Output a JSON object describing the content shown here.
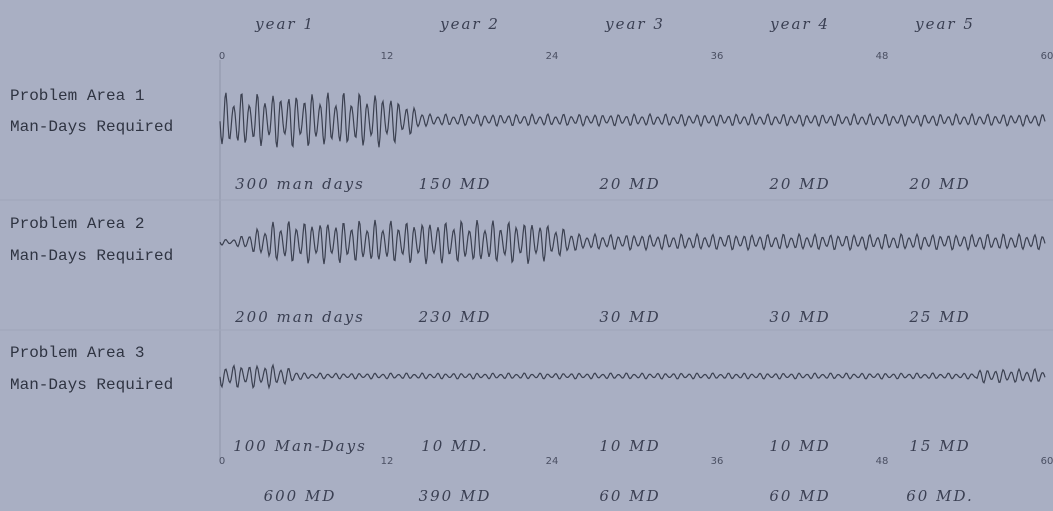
{
  "header": {
    "years": [
      "year 1",
      "year 2",
      "year 3",
      "year 4",
      "year 5"
    ],
    "ticks": [
      "0",
      "12",
      "24",
      "36",
      "48",
      "60"
    ]
  },
  "rows": [
    {
      "label": "Problem Area 1",
      "sublabel": "Man-Days Required",
      "annotations": [
        "300 man days",
        "150 MD",
        "20 MD",
        "20 MD",
        "20 MD"
      ]
    },
    {
      "label": "Problem Area 2",
      "sublabel": "Man-Days Required",
      "annotations": [
        "200 man days",
        "230 MD",
        "30 MD",
        "30 MD",
        "25 MD"
      ]
    },
    {
      "label": "Problem Area 3",
      "sublabel": "Man-Days Required",
      "annotations": [
        "100 Man-Days",
        "10 MD.",
        "10 MD",
        "10 MD",
        "15 MD"
      ]
    }
  ],
  "footer": {
    "ticks": [
      "0",
      "12",
      "24",
      "36",
      "48",
      "60"
    ],
    "totals": [
      "600 MD",
      "390 MD",
      "60 MD",
      "60 MD",
      "60 MD."
    ]
  }
}
